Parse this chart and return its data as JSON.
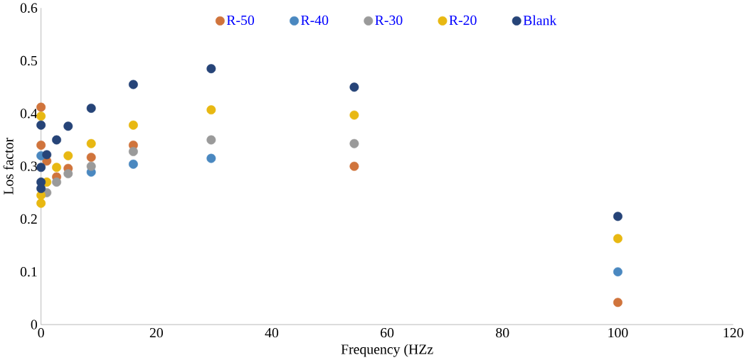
{
  "chart_data": {
    "type": "scatter",
    "xlabel": "Frequency (HZz",
    "ylabel": "Los factor",
    "xlim": [
      0,
      120
    ],
    "xticks": [
      0,
      20,
      40,
      60,
      80,
      100,
      120
    ],
    "ylim": [
      0,
      0.6
    ],
    "yticks": [
      0,
      0.1,
      0.2,
      0.3,
      0.4,
      0.5,
      0.6
    ],
    "grid": false,
    "legend": "top",
    "marker": "circle",
    "series": [
      {
        "name": "R-50",
        "color": "#d0743c",
        "x": [
          0,
          0,
          1,
          2.7,
          4.7,
          8.7,
          16,
          54.3,
          100
        ],
        "values": [
          0.412,
          0.34,
          0.31,
          0.28,
          0.296,
          0.317,
          0.34,
          0.3,
          0.042
        ]
      },
      {
        "name": "R-40",
        "color": "#4a88c0",
        "x": [
          0,
          8.7,
          16,
          29.5,
          100
        ],
        "values": [
          0.32,
          0.289,
          0.304,
          0.315,
          0.1
        ]
      },
      {
        "name": "R-30",
        "color": "#9a9a9a",
        "x": [
          1,
          2.7,
          4.7,
          8.7,
          16,
          29.5,
          54.3
        ],
        "values": [
          0.25,
          0.27,
          0.286,
          0.3,
          0.328,
          0.35,
          0.343
        ]
      },
      {
        "name": "R-20",
        "color": "#e8b812",
        "x": [
          0,
          0,
          0,
          1,
          2.7,
          4.7,
          8.7,
          16,
          29.5,
          54.3,
          100
        ],
        "values": [
          0.395,
          0.23,
          0.245,
          0.27,
          0.298,
          0.32,
          0.343,
          0.378,
          0.407,
          0.397,
          0.163
        ]
      },
      {
        "name": "Blank",
        "color": "#264478",
        "x": [
          0,
          0,
          0,
          0,
          1,
          2.7,
          4.7,
          8.7,
          16,
          29.5,
          54.3,
          100
        ],
        "values": [
          0.378,
          0.298,
          0.27,
          0.258,
          0.322,
          0.35,
          0.376,
          0.41,
          0.455,
          0.485,
          0.45,
          0.205
        ]
      }
    ]
  }
}
